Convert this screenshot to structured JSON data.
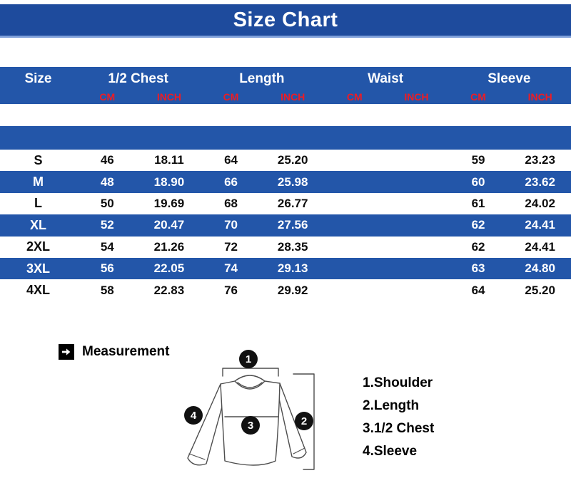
{
  "banner": {
    "title": "Size Chart"
  },
  "colors": {
    "banner_blue": "#1e4b9d",
    "row_blue": "#2356a9",
    "divider_blue": "#7fa0d9",
    "unit_red": "#ed1c24"
  },
  "table": {
    "groups": [
      {
        "label": "Size",
        "span": 1
      },
      {
        "label": "1/2 Chest",
        "span": 2
      },
      {
        "label": "Length",
        "span": 2
      },
      {
        "label": "Waist",
        "span": 2
      },
      {
        "label": "Sleeve",
        "span": 2
      }
    ],
    "units": [
      "CM",
      "INCH",
      "CM",
      "INCH",
      "CM",
      "INCH",
      "CM",
      "INCH"
    ],
    "rows": [
      {
        "size": "S",
        "values": [
          "46",
          "18.11",
          "64",
          "25.20",
          "",
          "",
          "59",
          "23.23"
        ]
      },
      {
        "size": "M",
        "values": [
          "48",
          "18.90",
          "66",
          "25.98",
          "",
          "",
          "60",
          "23.62"
        ]
      },
      {
        "size": "L",
        "values": [
          "50",
          "19.69",
          "68",
          "26.77",
          "",
          "",
          "61",
          "24.02"
        ]
      },
      {
        "size": "XL",
        "values": [
          "52",
          "20.47",
          "70",
          "27.56",
          "",
          "",
          "62",
          "24.41"
        ]
      },
      {
        "size": "2XL",
        "values": [
          "54",
          "21.26",
          "72",
          "28.35",
          "",
          "",
          "62",
          "24.41"
        ]
      },
      {
        "size": "3XL",
        "values": [
          "56",
          "22.05",
          "74",
          "29.13",
          "",
          "",
          "63",
          "24.80"
        ]
      },
      {
        "size": "4XL",
        "values": [
          "58",
          "22.83",
          "76",
          "29.92",
          "",
          "",
          "64",
          "25.20"
        ]
      }
    ]
  },
  "measurement": {
    "label": "Measurement",
    "icon": "arrow-right-icon"
  },
  "diagram": {
    "badges": [
      "1",
      "2",
      "3",
      "4"
    ],
    "legend": [
      "1.Shoulder",
      "2.Length",
      "3.1/2 Chest",
      "4.Sleeve"
    ]
  },
  "chart_data": {
    "type": "table",
    "title": "Size Chart",
    "column_groups": [
      "Size",
      "1/2 Chest",
      "Length",
      "Waist",
      "Sleeve"
    ],
    "columns": [
      "Size",
      "1/2 Chest CM",
      "1/2 Chest INCH",
      "Length CM",
      "Length INCH",
      "Waist CM",
      "Waist INCH",
      "Sleeve CM",
      "Sleeve INCH"
    ],
    "rows": [
      [
        "S",
        "46",
        "18.11",
        "64",
        "25.20",
        "",
        "",
        "59",
        "23.23"
      ],
      [
        "M",
        "48",
        "18.90",
        "66",
        "25.98",
        "",
        "",
        "60",
        "23.62"
      ],
      [
        "L",
        "50",
        "19.69",
        "68",
        "26.77",
        "",
        "",
        "61",
        "24.02"
      ],
      [
        "XL",
        "52",
        "20.47",
        "70",
        "27.56",
        "",
        "",
        "62",
        "24.41"
      ],
      [
        "2XL",
        "54",
        "21.26",
        "72",
        "28.35",
        "",
        "",
        "62",
        "24.41"
      ],
      [
        "3XL",
        "56",
        "22.05",
        "74",
        "29.13",
        "",
        "",
        "63",
        "24.80"
      ],
      [
        "4XL",
        "58",
        "22.83",
        "76",
        "29.92",
        "",
        "",
        "64",
        "25.20"
      ]
    ],
    "notes": "Measurement diagram legend: 1.Shoulder, 2.Length, 3.1/2 Chest, 4.Sleeve"
  }
}
